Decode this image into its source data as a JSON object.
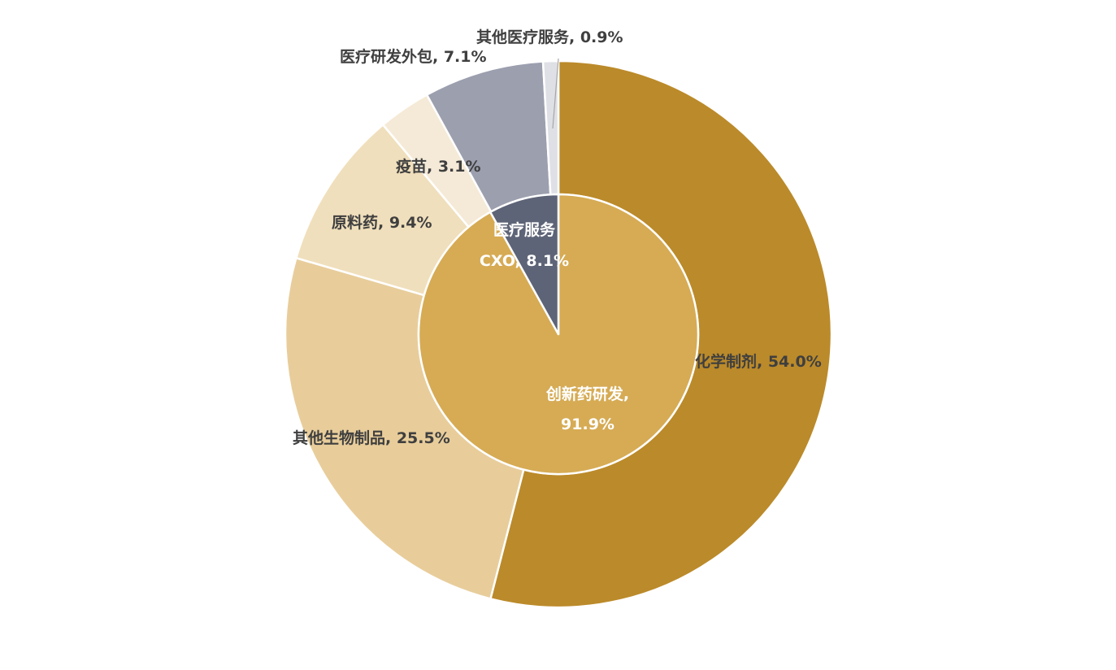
{
  "chart_data": {
    "type": "pie",
    "subtype": "sunburst",
    "inner_ring": [
      {
        "label": "创新药研发,",
        "value_label": "91.9%",
        "value": 91.9,
        "color": "#d6ab54"
      },
      {
        "label": "医疗服务",
        "value_label": "CXO, 8.1%",
        "value": 8.1,
        "color": "#5e6477"
      }
    ],
    "outer_ring": [
      {
        "label": "化学制剂, 54.0%",
        "value": 54.0,
        "parent": "创新药研发,",
        "color": "#bb8a2a"
      },
      {
        "label": "其他生物制品, 25.5%",
        "value": 25.5,
        "parent": "创新药研发,",
        "color": "#e8cd9b"
      },
      {
        "label": "原料药, 9.4%",
        "value": 9.4,
        "parent": "创新药研发,",
        "color": "#f0dfbc"
      },
      {
        "label": "疫苗, 3.1%",
        "value": 3.1,
        "parent": "创新药研发,",
        "color": "#f5ead7"
      },
      {
        "label": "医疗研发外包, 7.1%",
        "value": 7.1,
        "parent": "医疗服务",
        "color": "#9c9fae"
      },
      {
        "label": "其他医疗服务, 0.9%",
        "value": 0.9,
        "parent": "医疗服务",
        "color": "#dfe0e6"
      }
    ],
    "title": "",
    "legend": "none"
  }
}
